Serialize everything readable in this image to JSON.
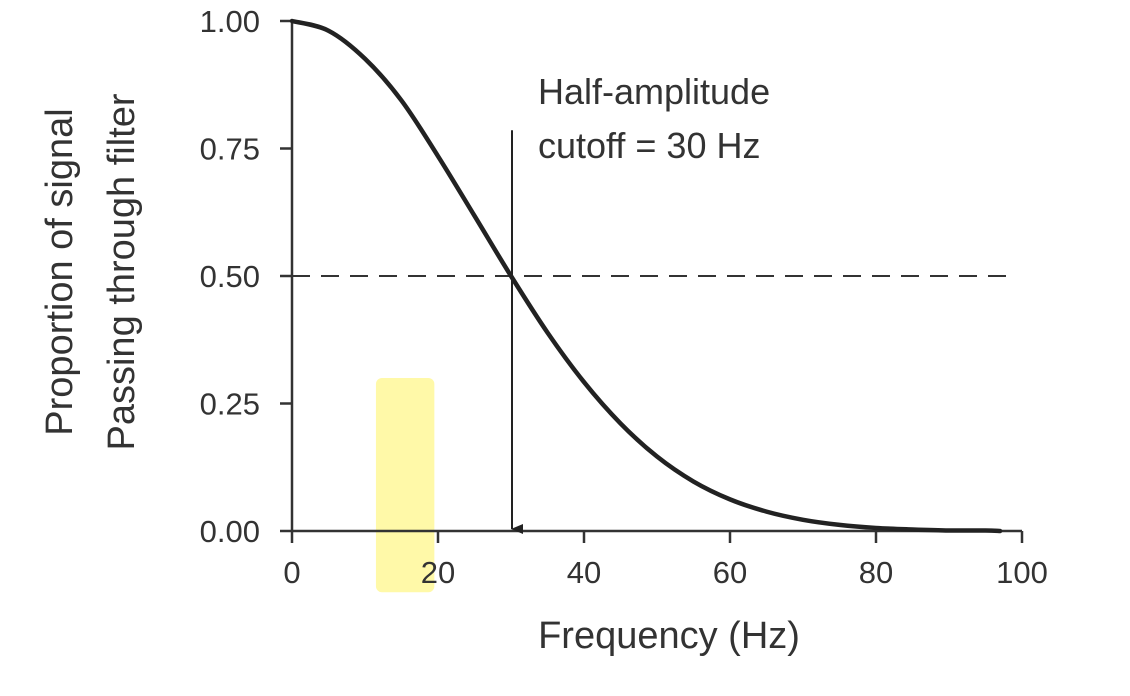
{
  "chart_data": {
    "type": "line",
    "title": "",
    "xlabel": "Frequency (Hz)",
    "ylabel_lines": [
      "Proportion of signal",
      "Passing through filter"
    ],
    "xlim": [
      0,
      100
    ],
    "ylim": [
      0,
      1
    ],
    "x_ticks": [
      0,
      20,
      40,
      60,
      80,
      100
    ],
    "y_ticks": [
      0,
      0.25,
      0.5,
      0.75,
      1
    ],
    "x_tick_labels": [
      "0",
      "20",
      "40",
      "60",
      "80",
      "100"
    ],
    "y_tick_labels": [
      "0.00",
      "0.25",
      "0.50",
      "0.75",
      "1.00"
    ],
    "grid": false,
    "series": [
      {
        "x": [
          0,
          5,
          10,
          15,
          20,
          25,
          30,
          35,
          40,
          45,
          50,
          55,
          60,
          65,
          70,
          75,
          80,
          85,
          90,
          95,
          97
        ],
        "y": [
          1.0,
          0.981,
          0.926,
          0.844,
          0.735,
          0.618,
          0.5,
          0.389,
          0.292,
          0.211,
          0.146,
          0.097,
          0.062,
          0.038,
          0.022,
          0.012,
          0.006,
          0.003,
          0.001,
          0.001,
          0.0
        ],
        "color": "#222222"
      }
    ],
    "reference_line": {
      "y": 0.5,
      "x_range": [
        0,
        100
      ],
      "style": "dashed",
      "color": "#333333"
    },
    "annotation": {
      "lines": [
        "Half-amplitude",
        "cutoff = 30 Hz"
      ],
      "arrow_x": 30,
      "arrow_y_from": 0.78,
      "arrow_y_to": 0
    },
    "highlight": {
      "x_range": [
        11.5,
        19.5
      ],
      "y_range": [
        -0.12,
        0.3
      ],
      "color": "#fff9a8"
    }
  }
}
